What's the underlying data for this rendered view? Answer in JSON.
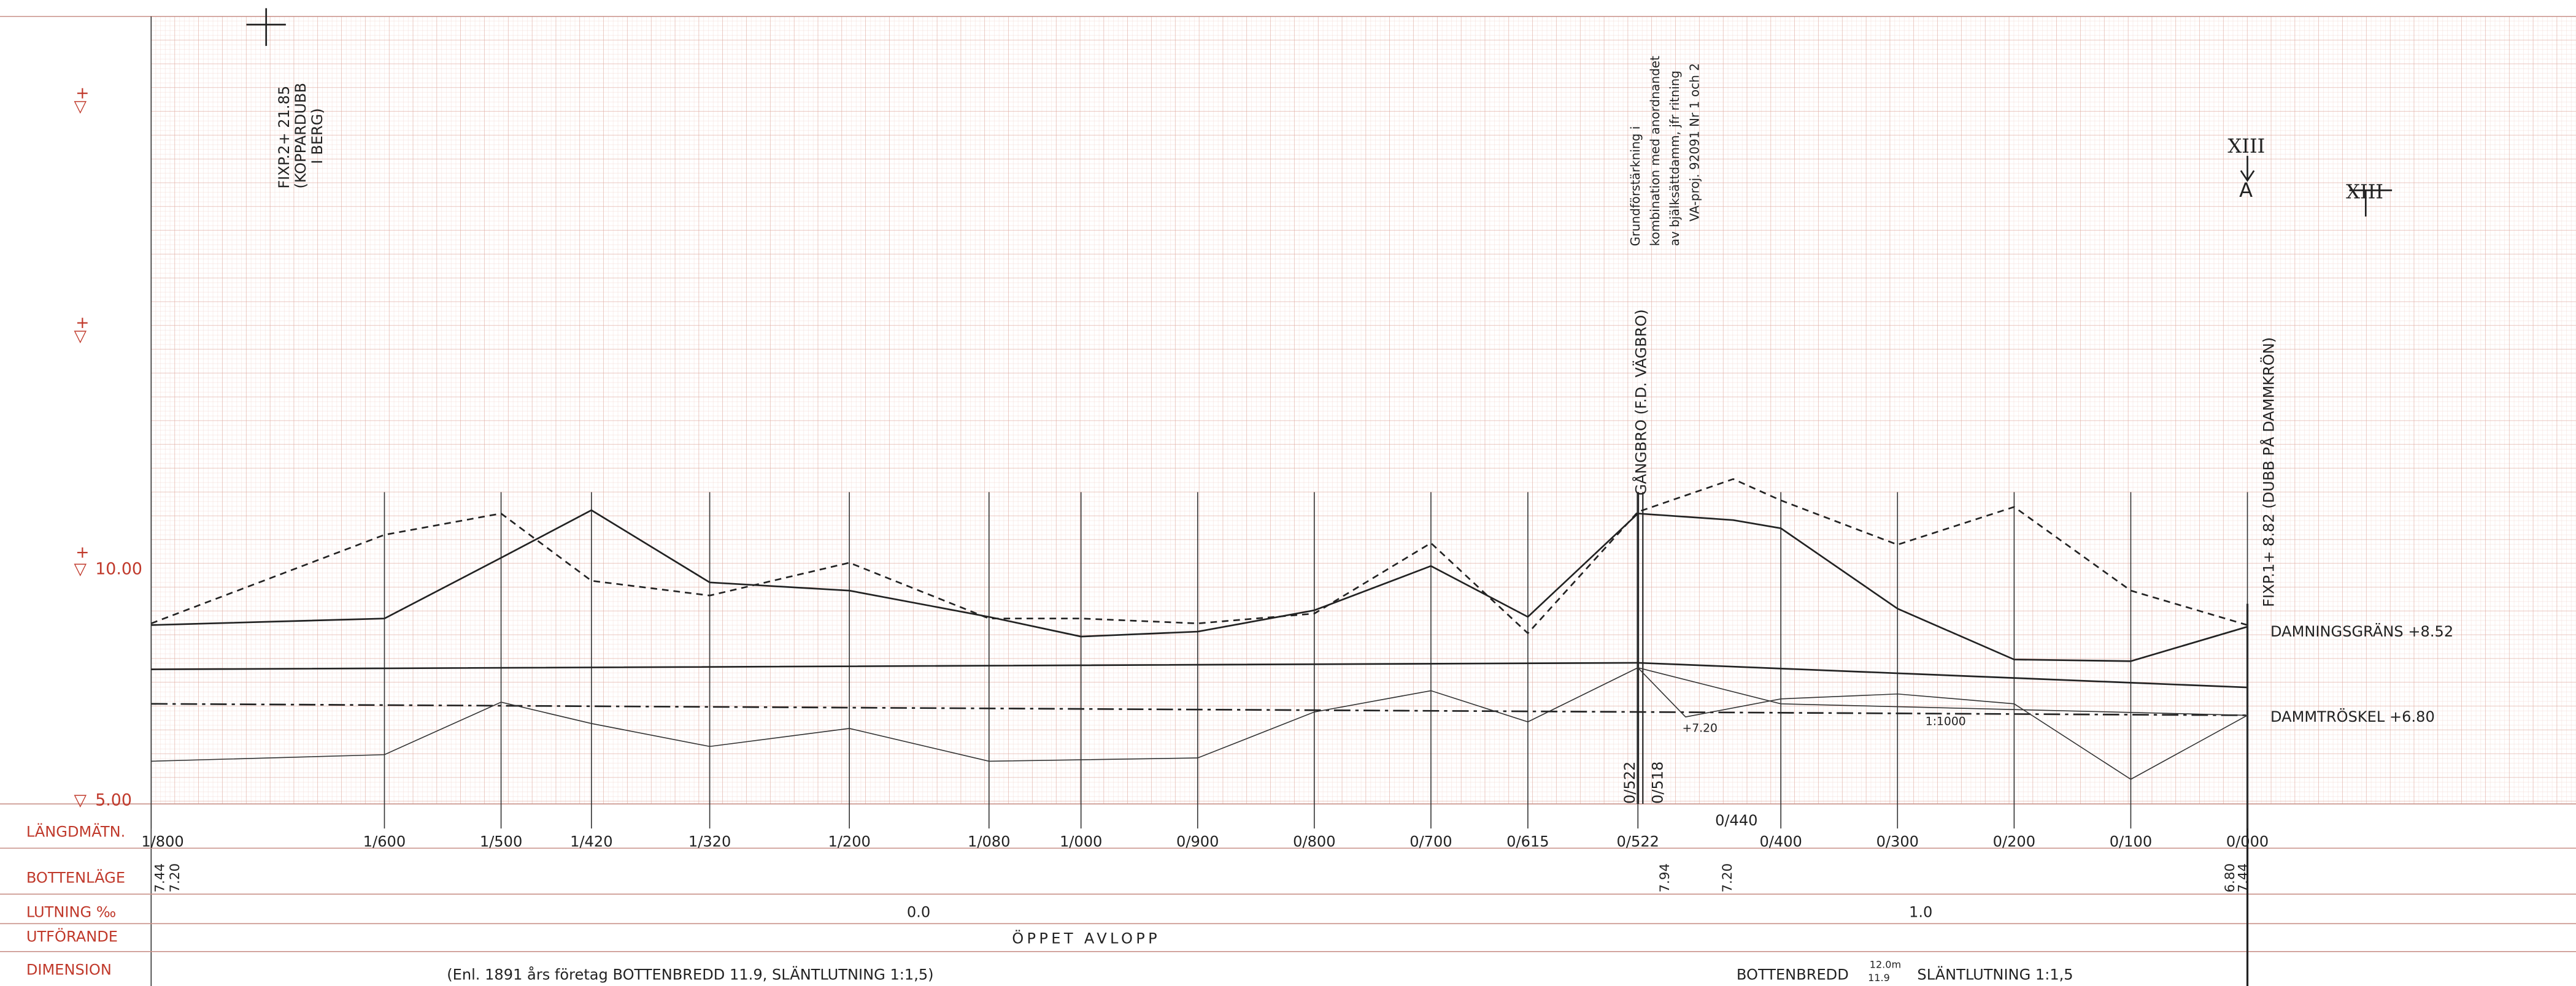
{
  "levels": {
    "plus": "+",
    "datum": "▽",
    "labels": [
      "10.00",
      "5.00"
    ]
  },
  "row_labels": [
    "LÄNGDMÄTN.",
    "BOTTENLÄGE",
    "LUTNING ‰",
    "UTFÖRANDE",
    "DIMENSION"
  ],
  "stations": [
    "1/800",
    "1/600",
    "1/500",
    "1/420",
    "1/320",
    "1/200",
    "1/080",
    "1/000",
    "0/900",
    "0/800",
    "0/700",
    "0/615",
    "0/522",
    "0/400",
    "0/300",
    "0/200",
    "0/100",
    "0/000"
  ],
  "annotations": {
    "fixp2": [
      "FIXP.2+ 21.85",
      "(KOPPARDUBB",
      "I BERG)"
    ],
    "note": [
      "Grundförstärkning i",
      "kombination med anordnandet",
      "av bjälksättdamm, jfr ritning",
      "VA-proj. 92091 Nr 1 och 2"
    ],
    "gangbro": "GÅNGBRO (F.D. VÄGBRO)",
    "fixp1": "FIXP.1+ 8.82 (DUBB PÅ DAMMKRÖN)",
    "section": "XIII",
    "section_letter": "A",
    "section2": "XIII",
    "damning": "DAMNINGSGRÄNS +8.52",
    "damm": "DAMMTRÖSKEL +6.80",
    "level_720": "+7.20",
    "scale": "1:1000",
    "st522": "0/522",
    "st518": "0/518",
    "st440": "0/440"
  },
  "bottom": {
    "b1": [
      "7.44",
      "7.20"
    ],
    "b2": [
      "7.94",
      "7.20"
    ],
    "b3": [
      "6.80",
      "7.44"
    ],
    "slope1": "0.0",
    "slope2": "1.0",
    "utforande": "ÖPPET AVLOPP",
    "dim1": "(Enl. 1891 års företag  BOTTENBREDD 11.9, SLÄNTLUTNING 1:1,5)",
    "dim2a": "BOTTENBREDD",
    "dim2b": "12.0m",
    "dim2c": "11.9",
    "dim2d": "SLÄNTLUTNING 1:1,5"
  }
}
